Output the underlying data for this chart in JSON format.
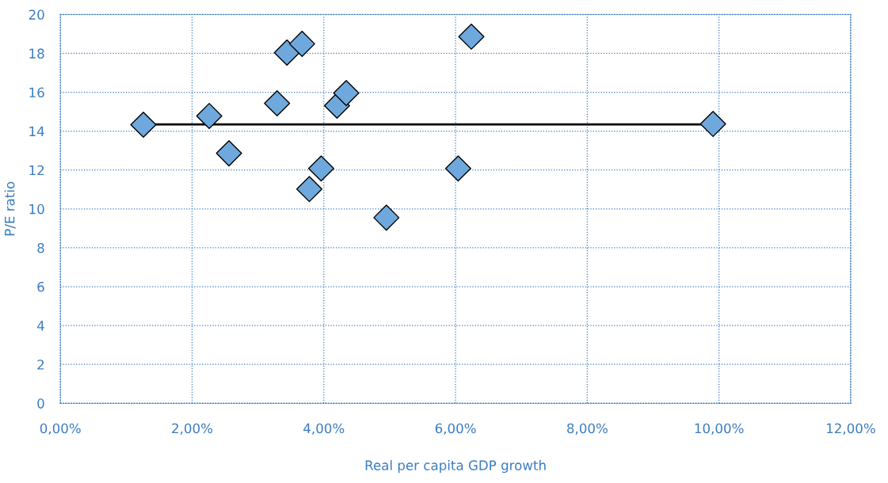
{
  "chart_data": {
    "type": "scatter",
    "xlabel": "Real per capita GDP growth",
    "ylabel": "P/E ratio",
    "xlim": [
      0,
      12
    ],
    "ylim": [
      0,
      20
    ],
    "xticks": [
      {
        "value": 0,
        "label": "0,00%"
      },
      {
        "value": 2,
        "label": "2,00%"
      },
      {
        "value": 4,
        "label": "4,00%"
      },
      {
        "value": 6,
        "label": "6,00%"
      },
      {
        "value": 8,
        "label": "8,00%"
      },
      {
        "value": 10,
        "label": "10,00%"
      },
      {
        "value": 12,
        "label": "12,00%"
      }
    ],
    "yticks": [
      0,
      2,
      4,
      6,
      8,
      10,
      12,
      14,
      16,
      18,
      20
    ],
    "grid": true,
    "series": [
      {
        "type": "line",
        "color": "#000000",
        "x": [
          1.43,
          9.74
        ],
        "values": [
          14.35,
          14.35
        ]
      },
      {
        "marker": "diamond",
        "color": "#6fa8dc",
        "x": [
          1.26,
          2.26,
          2.56,
          3.29,
          3.44,
          3.67,
          3.78,
          3.96,
          4.2,
          4.34,
          4.95,
          6.04,
          6.24,
          9.91
        ],
        "values": [
          14.33,
          14.78,
          12.86,
          15.43,
          18.04,
          18.49,
          11.02,
          12.08,
          15.31,
          15.96,
          9.55,
          12.08,
          18.86,
          14.37
        ]
      }
    ]
  }
}
